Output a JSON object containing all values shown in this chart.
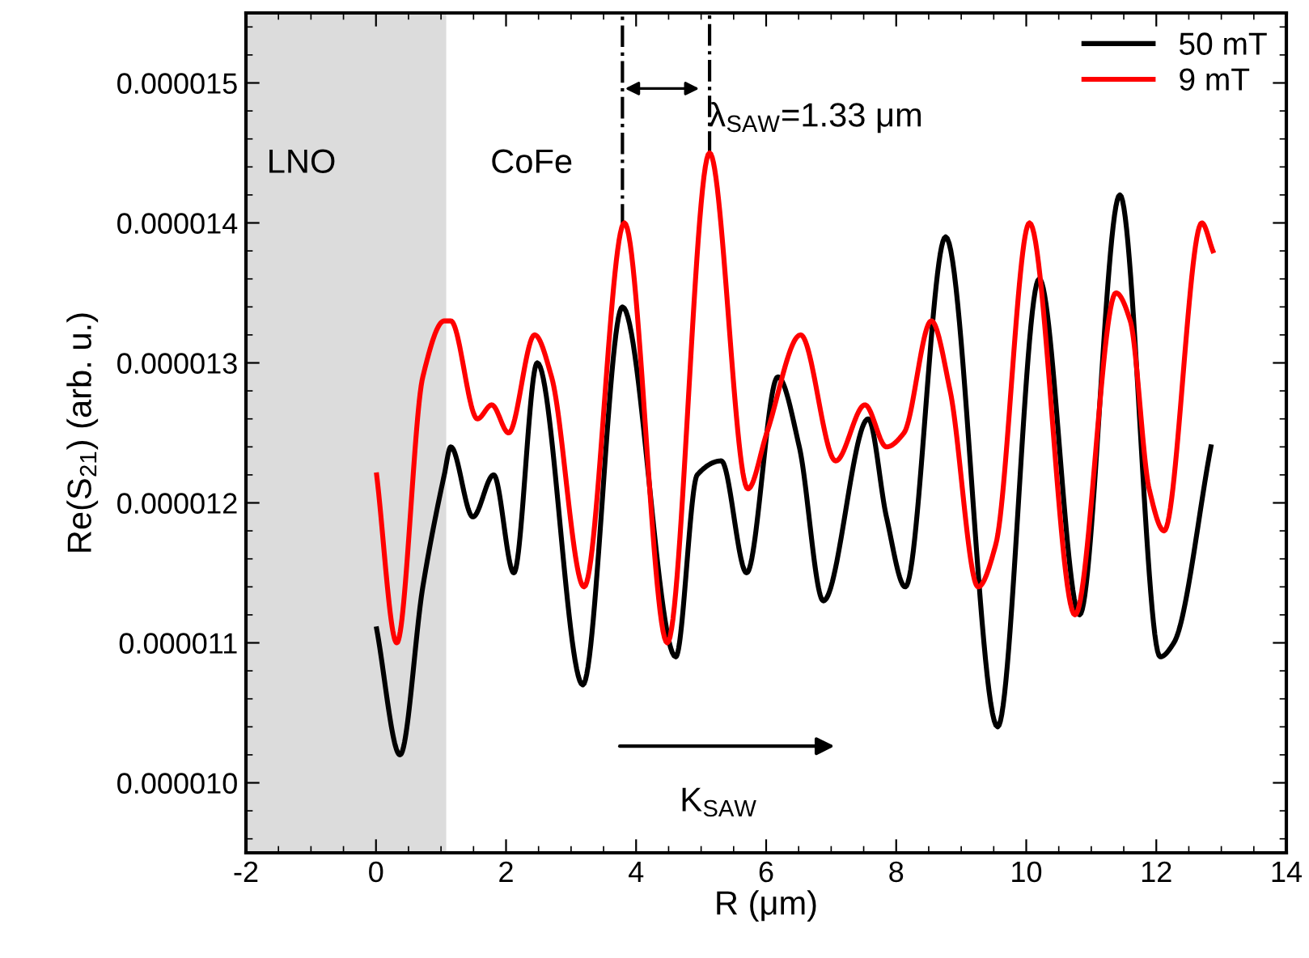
{
  "chart_data": {
    "type": "line",
    "xlabel": "R (μm)",
    "ylabel": "Re(S$_{21}$) (arb. u.)",
    "xlim": [
      -2,
      14
    ],
    "xticks": [
      -2,
      0,
      2,
      4,
      6,
      8,
      10,
      12,
      14
    ],
    "ylim": [
      9.5e-06,
      1.55e-05
    ],
    "yticks": [
      {
        "value": 1e-05,
        "label": "0.000010"
      },
      {
        "value": 1.1e-05,
        "label": "0.000011"
      },
      {
        "value": 1.2e-05,
        "label": "0.000012"
      },
      {
        "value": 1.3e-05,
        "label": "0.000013"
      },
      {
        "value": 1.4e-05,
        "label": "0.000014"
      },
      {
        "value": 1.5e-05,
        "label": "0.000015"
      }
    ],
    "grid": false,
    "legend": "top right",
    "marker": "none",
    "line_style": "solid",
    "series": [
      {
        "name": "50 mT",
        "color": "#000000",
        "x": [
          0.01,
          0.37,
          0.72,
          1.05,
          1.15,
          1.49,
          1.81,
          2.12,
          2.48,
          3.18,
          3.79,
          4.61,
          4.94,
          5.31,
          5.7,
          6.18,
          6.51,
          6.88,
          7.57,
          7.85,
          8.14,
          8.76,
          9.56,
          10.2,
          10.82,
          11.44,
          12.06,
          12.27,
          12.84
        ],
        "values": [
          1.11e-05,
          1.02e-05,
          1.14e-05,
          1.22e-05,
          1.24e-05,
          1.19e-05,
          1.22e-05,
          1.15e-05,
          1.3e-05,
          1.07e-05,
          1.34e-05,
          1.09e-05,
          1.22e-05,
          1.23e-05,
          1.15e-05,
          1.29e-05,
          1.24e-05,
          1.13e-05,
          1.26e-05,
          1.19e-05,
          1.14e-05,
          1.39e-05,
          1.04e-05,
          1.36e-05,
          1.12e-05,
          1.42e-05,
          1.09e-05,
          1.1e-05,
          1.24e-05
        ]
      },
      {
        "name": "9 mT",
        "color": "#ff0000",
        "x": [
          0.01,
          0.32,
          0.72,
          1.05,
          1.15,
          1.56,
          1.78,
          2.04,
          2.44,
          2.7,
          3.2,
          3.82,
          4.48,
          5.13,
          5.72,
          6.01,
          6.53,
          7.07,
          7.52,
          7.85,
          8.12,
          8.54,
          8.83,
          9.26,
          9.53,
          10.05,
          10.75,
          11.38,
          11.6,
          11.89,
          12.12,
          12.7,
          12.87
        ],
        "values": [
          1.22e-05,
          1.1e-05,
          1.29e-05,
          1.33e-05,
          1.33e-05,
          1.26e-05,
          1.27e-05,
          1.25e-05,
          1.32e-05,
          1.29e-05,
          1.14e-05,
          1.4e-05,
          1.1e-05,
          1.45e-05,
          1.21e-05,
          1.25e-05,
          1.32e-05,
          1.23e-05,
          1.27e-05,
          1.24e-05,
          1.25e-05,
          1.33e-05,
          1.28e-05,
          1.14e-05,
          1.17e-05,
          1.4e-05,
          1.12e-05,
          1.35e-05,
          1.33e-05,
          1.21e-05,
          1.18e-05,
          1.4e-05,
          1.38e-05
        ]
      }
    ],
    "bands": [
      {
        "axis": "x",
        "from": -2,
        "to": 1.08,
        "color": "#dcdcdc"
      }
    ],
    "ref_lines": [
      {
        "axis": "x",
        "value": 3.79,
        "line_style": "dashdot",
        "color": "#000000"
      },
      {
        "axis": "x",
        "value": 5.13,
        "line_style": "dashdot",
        "color": "#000000"
      }
    ],
    "annotations": [
      "LNO",
      "CoFe",
      "λ$_{SAW}$=1.33 μm",
      "K$_{SAW}$"
    ]
  }
}
